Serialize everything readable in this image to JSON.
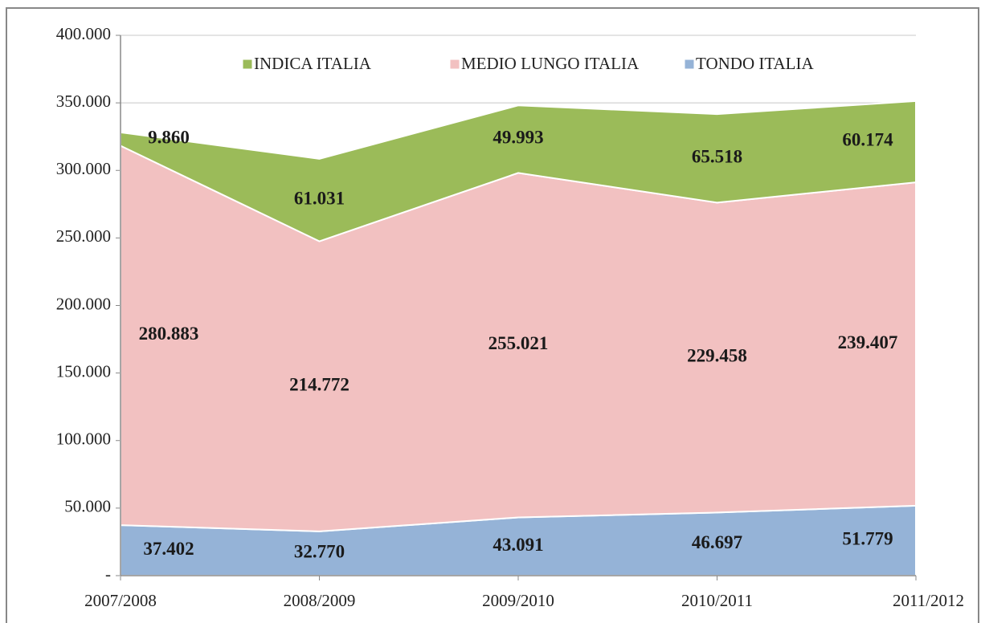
{
  "chart_data": {
    "type": "stacked-area",
    "categories": [
      "2007/2008",
      "2008/2009",
      "2009/2010",
      "2010/2011",
      "2011/2012"
    ],
    "series": [
      {
        "name": "TONDO ITALIA",
        "color": "#95b3d7",
        "values": [
          37402,
          32770,
          43091,
          46697,
          51779
        ],
        "value_labels": [
          "37.402",
          "32.770",
          "43.091",
          "46.697",
          "51.779"
        ]
      },
      {
        "name": "MEDIO LUNGO ITALIA",
        "color": "#f2c1c1",
        "values": [
          280883,
          214772,
          255021,
          229458,
          239407
        ],
        "value_labels": [
          "280.883",
          "214.772",
          "255.021",
          "229.458",
          "239.407"
        ]
      },
      {
        "name": "INDICA ITALIA",
        "color": "#9bbb59",
        "values": [
          9860,
          61031,
          49993,
          65518,
          60174
        ],
        "value_labels": [
          "9.860",
          "61.031",
          "49.993",
          "65.518",
          "60.174"
        ]
      }
    ],
    "ylim": [
      0,
      400000
    ],
    "yticks": [
      {
        "value": 0,
        "label": "-"
      },
      {
        "value": 50000,
        "label": "50.000"
      },
      {
        "value": 100000,
        "label": "100.000"
      },
      {
        "value": 150000,
        "label": "150.000"
      },
      {
        "value": 200000,
        "label": "200.000"
      },
      {
        "value": 250000,
        "label": "250.000"
      },
      {
        "value": 300000,
        "label": "300.000"
      },
      {
        "value": 350000,
        "label": "350.000"
      },
      {
        "value": 400000,
        "label": "400.000"
      }
    ],
    "grid": true,
    "legend": "top"
  }
}
